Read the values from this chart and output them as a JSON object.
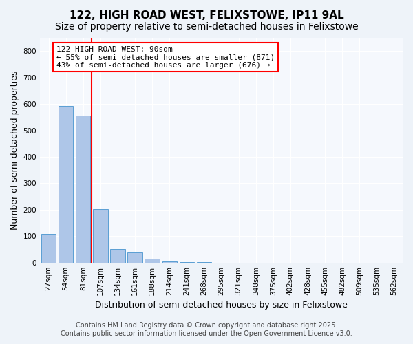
{
  "title1": "122, HIGH ROAD WEST, FELIXSTOWE, IP11 9AL",
  "title2": "Size of property relative to semi-detached houses in Felixstowe",
  "xlabel": "Distribution of semi-detached houses by size in Felixstowe",
  "ylabel": "Number of semi-detached properties",
  "categories": [
    "27sqm",
    "54sqm",
    "81sqm",
    "107sqm",
    "134sqm",
    "161sqm",
    "188sqm",
    "214sqm",
    "241sqm",
    "268sqm",
    "295sqm",
    "321sqm",
    "348sqm",
    "375sqm",
    "402sqm",
    "428sqm",
    "455sqm",
    "482sqm",
    "509sqm",
    "535sqm",
    "562sqm"
  ],
  "values": [
    108,
    592,
    556,
    201,
    51,
    37,
    14,
    5,
    2,
    1,
    0,
    0,
    0,
    0,
    0,
    0,
    0,
    0,
    0,
    0,
    0
  ],
  "bar_color": "#aec6e8",
  "bar_edge_color": "#5a9fd4",
  "vline_color": "red",
  "vline_x": 2.5,
  "annotation_title": "122 HIGH ROAD WEST: 90sqm",
  "annotation_line1": "← 55% of semi-detached houses are smaller (871)",
  "annotation_line2": "43% of semi-detached houses are larger (676) →",
  "annotation_box_color": "white",
  "annotation_box_edge_color": "red",
  "ylim": [
    0,
    850
  ],
  "yticks": [
    0,
    100,
    200,
    300,
    400,
    500,
    600,
    700,
    800
  ],
  "bg_color": "#eef3f9",
  "plot_bg_color": "#f5f8fd",
  "footer1": "Contains HM Land Registry data © Crown copyright and database right 2025.",
  "footer2": "Contains public sector information licensed under the Open Government Licence v3.0.",
  "title_fontsize": 11,
  "subtitle_fontsize": 10,
  "axis_label_fontsize": 9,
  "tick_fontsize": 7.5,
  "annotation_fontsize": 8,
  "footer_fontsize": 7
}
